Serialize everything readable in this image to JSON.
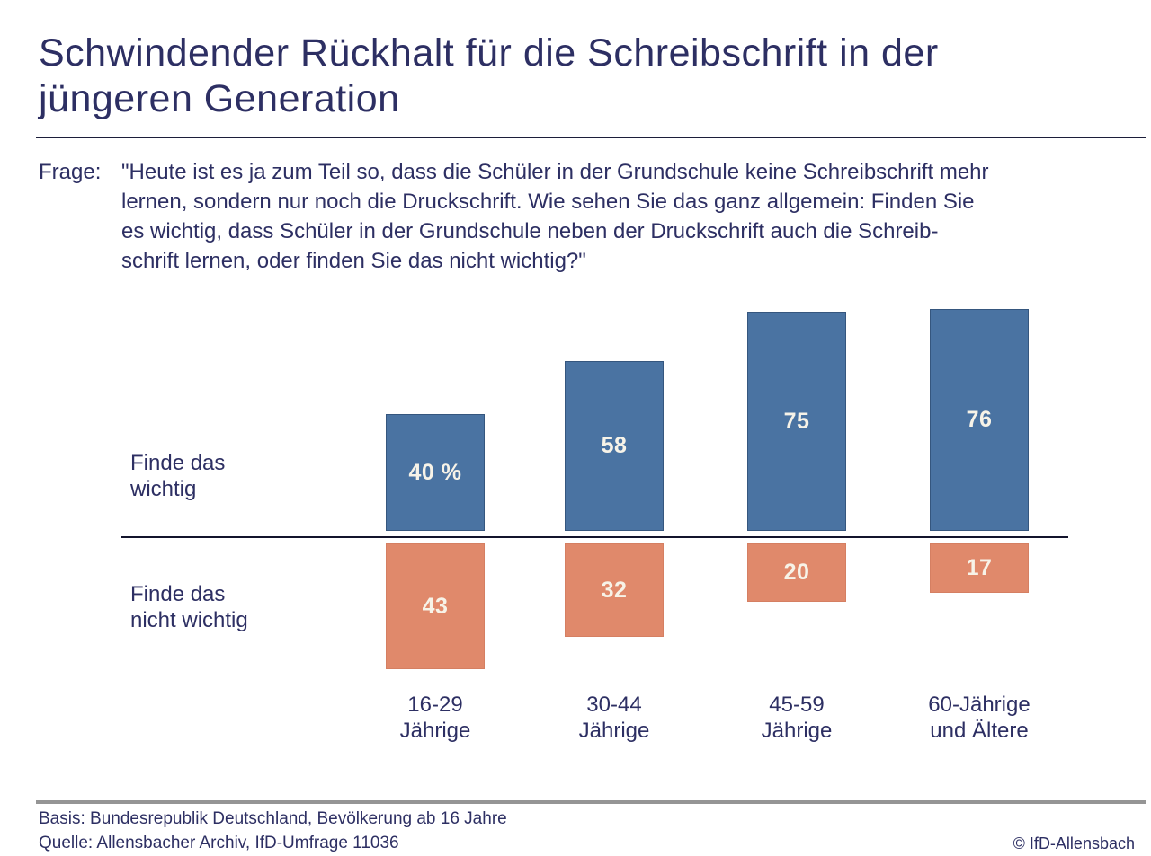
{
  "page": {
    "title_lines": [
      "Schwindender Rückhalt für die Schreibschrift in der",
      "jüngeren Generation"
    ],
    "copyright": "© IfD-Allensbach"
  },
  "question": {
    "label": "Frage:",
    "lines": [
      "\"Heute ist es ja zum Teil so, dass die Schüler in der Grundschule keine Schreibschrift mehr",
      "lernen, sondern nur noch die Druckschrift. Wie sehen Sie das ganz allgemein: Finden Sie",
      "es wichtig, dass Schüler in der Grundschule neben der Druckschrift auch die Schreib-",
      "schrift lernen, oder finden Sie das nicht wichtig?\""
    ]
  },
  "chart_data": {
    "type": "bar",
    "orientation": "diverging-vertical",
    "unit": "percent of respondents",
    "categories": [
      [
        "16-29",
        "Jährige"
      ],
      [
        "30-44",
        "Jährige"
      ],
      [
        "45-59",
        "Jährige"
      ],
      [
        "60-Jährige",
        "und Ältere"
      ]
    ],
    "series": [
      {
        "name": "Finde das wichtig",
        "row_label_lines": [
          "Finde das",
          "wichtig"
        ],
        "values": [
          40,
          58,
          75,
          76
        ],
        "labels": [
          "40 %",
          "58",
          "75",
          "76"
        ],
        "color": "#4a73a2",
        "direction": "up"
      },
      {
        "name": "Finde das nicht wichtig",
        "row_label_lines": [
          "Finde das",
          "nicht wichtig"
        ],
        "values": [
          43,
          32,
          20,
          17
        ],
        "labels": [
          "43",
          "32",
          "20",
          "17"
        ],
        "color": "#e0896b",
        "direction": "down"
      }
    ],
    "ylim": [
      0,
      100
    ],
    "value_label_color": "#f7f3e8",
    "legend_position": "left-row-labels",
    "grid": false
  },
  "footer": {
    "basis": "Basis: Bundesrepublik Deutschland, Bevölkerung ab 16 Jahre",
    "quelle": "Quelle: Allensbacher Archiv, IfD-Umfrage 11036"
  },
  "colors": {
    "text_navy": "#2d2f63",
    "bar_blue": "#4a73a2",
    "bar_salmon": "#e0896b",
    "rule_dark": "#1c1e3a",
    "rule_gray": "#959595"
  }
}
